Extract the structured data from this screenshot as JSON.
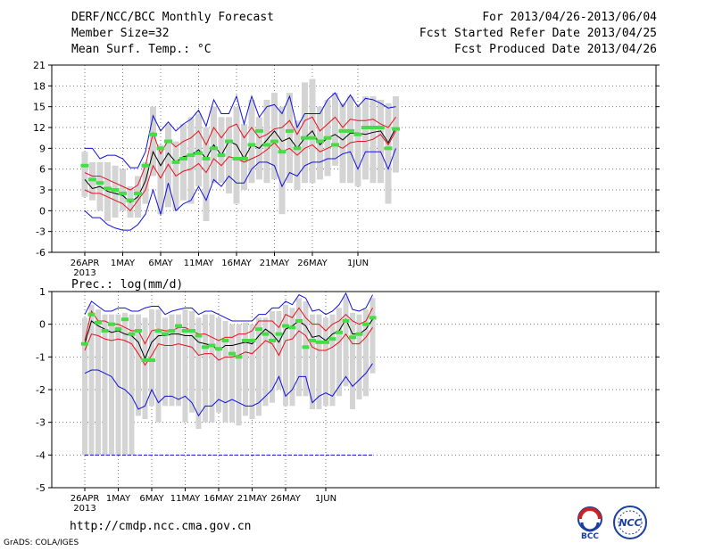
{
  "header": {
    "title": "DERF/NCC/BCC Monthly Forecast",
    "member_size": "Member Size=32",
    "variable": "Mean Surf. Temp.: °C",
    "period": "For 2013/04/26-2013/06/04",
    "started": "Fcst Started Refer Date 2013/04/25",
    "produced": "Fcst Produced Date 2013/04/26"
  },
  "footer": {
    "url": "http://cmdp.ncc.cma.gov.cn",
    "grads": "GrADS: COLA/IGES",
    "logo_bcc": "BCC",
    "logo_ncc": "NCC"
  },
  "colors": {
    "box": "#d4d4d4",
    "mean": "#000000",
    "spread": "#e8101e",
    "extreme": "#1010e0",
    "marker": "#44dd44",
    "grid": "#777777"
  },
  "chart_data": [
    {
      "type": "line",
      "title": "Mean Surf. Temp.: °C",
      "ylim": [
        -6,
        21
      ],
      "yticks": [
        -6,
        -3,
        0,
        3,
        6,
        9,
        12,
        15,
        18,
        21
      ],
      "x_tick_labels": [
        "26APR",
        "1MAY",
        "6MAY",
        "11MAY",
        "16MAY",
        "21MAY",
        "26MAY",
        "1JUN"
      ],
      "x_tick_index": [
        0,
        5,
        10,
        15,
        20,
        25,
        30,
        36
      ],
      "x_sublabel": "2013",
      "series": [
        {
          "name": "max",
          "values": [
            9,
            9,
            7.5,
            8,
            8,
            7.5,
            6.2,
            6.2,
            8.5,
            13.7,
            11.5,
            12.8,
            11.5,
            12.5,
            13.2,
            14.5,
            12.2,
            16,
            14,
            14,
            16.5,
            12.5,
            16.5,
            13.5,
            15,
            15.3,
            14,
            16.5,
            12,
            14,
            14,
            14,
            16,
            17,
            15,
            16.7,
            15,
            16.2,
            16,
            15.5,
            14.8,
            15
          ]
        },
        {
          "name": "upper",
          "values": [
            5.5,
            5,
            5,
            4.5,
            4,
            3.5,
            3,
            3.7,
            6.5,
            11.2,
            8.2,
            10.2,
            9.2,
            10,
            10.5,
            11.5,
            9.5,
            12,
            10.5,
            12,
            12.5,
            10.5,
            12,
            10.5,
            11,
            11.8,
            12,
            13,
            11,
            13,
            13.5,
            11.5,
            12.5,
            13.5,
            12,
            13.2,
            13,
            13,
            13.2,
            12.5,
            12,
            13.5
          ]
        },
        {
          "name": "mean",
          "values": [
            4.5,
            3.2,
            3.5,
            2.8,
            2.5,
            2.2,
            1.2,
            2,
            4.3,
            8.5,
            6.5,
            8.3,
            7,
            7.8,
            8,
            8.8,
            7.5,
            9.5,
            8,
            10,
            9.5,
            7.5,
            9.5,
            9,
            10.2,
            11.5,
            10,
            10.5,
            9,
            10.5,
            11.5,
            9.5,
            10.5,
            11,
            10.2,
            11.2,
            11.2,
            11,
            11.3,
            11.5,
            9.8,
            12
          ]
        },
        {
          "name": "lower",
          "values": [
            3,
            2.5,
            2.5,
            2,
            1.5,
            1,
            0,
            1.5,
            3,
            6.5,
            4.7,
            6.7,
            5,
            5.7,
            6,
            6.8,
            5.5,
            7.5,
            6.5,
            7.8,
            7.5,
            7,
            7.5,
            8,
            8.8,
            9.8,
            8.5,
            9,
            8,
            9,
            9.5,
            8.5,
            9,
            9.5,
            9,
            9.8,
            10,
            10,
            10.3,
            11,
            9.5,
            11.5
          ]
        },
        {
          "name": "min",
          "values": [
            0,
            -1,
            -1,
            -2,
            -2.5,
            -2.8,
            -2.8,
            -2,
            -0.5,
            3,
            -0.5,
            4,
            0,
            1,
            1.5,
            3.5,
            1.5,
            4.5,
            3.5,
            5,
            4,
            4,
            6,
            7,
            7,
            6.5,
            3.5,
            5.5,
            5,
            6.5,
            7,
            7,
            7.5,
            7.5,
            8.2,
            8.5,
            6,
            8.5,
            8.5,
            8.5,
            6,
            9
          ]
        },
        {
          "name": "box_top",
          "values": [
            8.5,
            7,
            7,
            7,
            6.5,
            6,
            3.5,
            5,
            7,
            15,
            9.5,
            12.5,
            10,
            12.5,
            13.5,
            14,
            12,
            15,
            13.5,
            13.5,
            15,
            12.5,
            16,
            13.5,
            16,
            17,
            15,
            17,
            13,
            18.5,
            19,
            15,
            16,
            17,
            15.5,
            16.5,
            15,
            16.5,
            16.5,
            16,
            15.5,
            16.5
          ]
        },
        {
          "name": "box_bottom",
          "values": [
            2,
            1.5,
            0,
            -1.5,
            -1,
            0,
            -1,
            -1,
            1,
            5,
            -0.5,
            0.5,
            0,
            1.5,
            1,
            3.5,
            -1.5,
            4,
            4,
            2.5,
            1,
            3,
            4,
            4.5,
            4,
            4.5,
            -0.5,
            4,
            3,
            4,
            4,
            4.5,
            5,
            6.5,
            4,
            4,
            3.5,
            4.5,
            4,
            4,
            1,
            5.5
          ]
        },
        {
          "name": "marker",
          "values": [
            6.5,
            4.5,
            4,
            3.2,
            3,
            2.5,
            1.5,
            2.5,
            6.5,
            11,
            9,
            10,
            7,
            7.5,
            8,
            8.3,
            7.5,
            9,
            8,
            10,
            7.5,
            7.5,
            9.5,
            11.5,
            9.5,
            10,
            8.5,
            11.5,
            9,
            10.5,
            10.5,
            10,
            10.5,
            9.5,
            11.5,
            11.5,
            11,
            12,
            12,
            12,
            9,
            11.8
          ]
        }
      ]
    },
    {
      "type": "line",
      "title": "Prec.: log(mm/d)",
      "ylim": [
        -5,
        1
      ],
      "yticks": [
        -5,
        -4,
        -3,
        -2,
        -1,
        0,
        1
      ],
      "x_tick_labels": [
        "26APR",
        "1MAY",
        "6MAY",
        "11MAY",
        "16MAY",
        "21MAY",
        "26MAY",
        "1JUN"
      ],
      "x_tick_index": [
        0,
        5,
        10,
        15,
        20,
        25,
        30,
        36
      ],
      "x_sublabel": "2013",
      "series": [
        {
          "name": "max",
          "values": [
            0.3,
            0.7,
            0.55,
            0.4,
            0.4,
            0.5,
            0.5,
            0.4,
            0.4,
            0.5,
            0.55,
            0.55,
            0.3,
            0.4,
            0.45,
            0.5,
            0.5,
            0.3,
            0.4,
            0.4,
            0.3,
            0.2,
            0.1,
            0.1,
            0.1,
            0.1,
            0.3,
            0.3,
            0.5,
            0.5,
            0.7,
            0.6,
            0.9,
            0.8,
            0.4,
            0.45,
            0.3,
            0.4,
            0.6,
            0.95,
            0.45,
            0.4,
            0.5,
            0.9
          ]
        },
        {
          "name": "upper",
          "values": [
            -0.5,
            0.4,
            0.1,
            0.1,
            0,
            0,
            -0.1,
            -0.2,
            -0.2,
            -0.6,
            -0.2,
            -0.15,
            -0.2,
            -0.2,
            -0.1,
            -0.1,
            -0.2,
            -0.3,
            -0.3,
            -0.4,
            -0.5,
            -0.4,
            -0.4,
            -0.3,
            -0.3,
            -0.2,
            0.1,
            0.1,
            0.1,
            -0.1,
            0.3,
            0.2,
            0.5,
            0.2,
            0,
            0,
            -0.2,
            0,
            0.1,
            0.3,
            0.1,
            0,
            0.1,
            0.5
          ]
        },
        {
          "name": "mean",
          "values": [
            -0.6,
            0.1,
            -0.05,
            -0.15,
            -0.25,
            -0.2,
            -0.3,
            -0.35,
            -0.55,
            -1.05,
            -0.55,
            -0.35,
            -0.35,
            -0.3,
            -0.3,
            -0.35,
            -0.35,
            -0.55,
            -0.6,
            -0.65,
            -0.8,
            -0.65,
            -0.65,
            -0.6,
            -0.55,
            -0.6,
            -0.35,
            -0.15,
            -0.3,
            -0.55,
            -0.15,
            -0.05,
            0.1,
            -0.05,
            -0.4,
            -0.35,
            -0.5,
            -0.3,
            -0.2,
            0.15,
            -0.3,
            -0.3,
            -0.15,
            0.15
          ]
        },
        {
          "name": "lower",
          "values": [
            -0.8,
            -0.3,
            -0.35,
            -0.45,
            -0.5,
            -0.45,
            -0.5,
            -0.6,
            -0.9,
            -1.25,
            -0.95,
            -0.6,
            -0.65,
            -0.65,
            -0.6,
            -0.65,
            -0.7,
            -0.95,
            -0.9,
            -0.9,
            -1.1,
            -1,
            -1,
            -0.95,
            -0.85,
            -0.9,
            -0.7,
            -0.5,
            -0.6,
            -0.95,
            -0.5,
            -0.45,
            -0.2,
            -0.35,
            -0.7,
            -0.8,
            -0.8,
            -0.7,
            -0.55,
            -0.3,
            -0.6,
            -0.6,
            -0.4,
            -0.1
          ]
        },
        {
          "name": "min",
          "values": [
            -1.5,
            -1.4,
            -1.4,
            -1.5,
            -1.6,
            -1.9,
            -2,
            -2.2,
            -2.6,
            -2.5,
            -2,
            -2.4,
            -2.2,
            -2.2,
            -2.3,
            -2.2,
            -2.4,
            -2.8,
            -2.5,
            -2.5,
            -2.3,
            -2.4,
            -2.3,
            -2.4,
            -2.5,
            -2.5,
            -2.4,
            -2.2,
            -2,
            -1.6,
            -2.2,
            -2,
            -1.6,
            -1.6,
            -2.4,
            -2.2,
            -2.1,
            -2.2,
            -1.9,
            -1.6,
            -1.9,
            -1.7,
            -1.5,
            -1.2
          ]
        },
        {
          "name": "box_top",
          "values": [
            0.2,
            0.6,
            0.45,
            0.3,
            0.3,
            0.3,
            0.35,
            0.3,
            0.3,
            0.2,
            0.45,
            0.45,
            0.2,
            0.3,
            0.3,
            0.45,
            0.4,
            0.2,
            0.3,
            0.3,
            0.2,
            0.1,
            0,
            0,
            0.05,
            0,
            0.2,
            0.2,
            0.4,
            0.4,
            0.6,
            0.5,
            0.8,
            0.7,
            0.3,
            0.3,
            0.2,
            0.3,
            0.5,
            0.85,
            0.35,
            0.3,
            0.45,
            0.8
          ]
        },
        {
          "name": "box_bottom",
          "values": [
            -4,
            -4,
            -4,
            -4,
            -4,
            -4,
            -4,
            -4,
            -2.8,
            -2.9,
            -2.5,
            -3,
            -2.5,
            -2.5,
            -2.5,
            -3,
            -2.7,
            -3.2,
            -3,
            -3,
            -2.7,
            -3,
            -3,
            -3.1,
            -2.8,
            -2.9,
            -2.8,
            -2.5,
            -2.4,
            -2,
            -2.5,
            -2.5,
            -2.2,
            -2.2,
            -2.6,
            -2.6,
            -2.5,
            -2.5,
            -2.2,
            -1.9,
            -2.6,
            -2.3,
            -2.2,
            -1.5
          ]
        },
        {
          "name": "marker",
          "values": [
            -0.6,
            0.3,
            0.05,
            -0.2,
            0,
            -0.15,
            0.15,
            -0.3,
            -0.2,
            -1.1,
            -1.1,
            -0.2,
            -0.3,
            -0.2,
            -0.05,
            -0.2,
            -0.2,
            -0.35,
            -0.7,
            -0.65,
            -0.75,
            -0.5,
            -0.9,
            -1,
            -0.5,
            -0.5,
            -0.15,
            -0.3,
            -0.5,
            -0.3,
            -0.05,
            -0.1,
            0.1,
            -0.7,
            -0.5,
            -0.55,
            -0.55,
            -0.45,
            -0.25,
            0.1,
            -0.4,
            -0.3,
            0,
            0.2
          ]
        },
        {
          "name": "floor",
          "values": [
            -4,
            -4
          ]
        }
      ]
    }
  ]
}
